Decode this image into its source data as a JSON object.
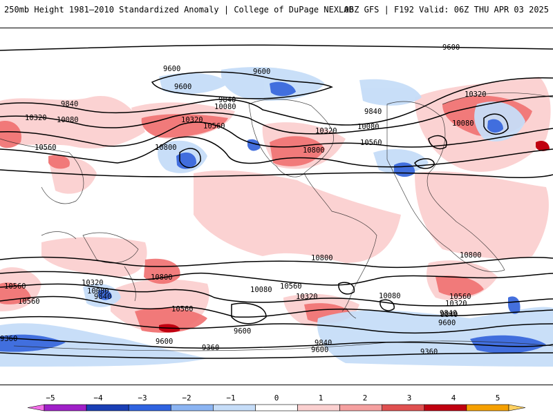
{
  "header": {
    "title_left": "250mb Height 1981–2010 Standardized Anomaly | College of DuPage NEXLAB",
    "title_right": "06Z GFS | F192 Valid: 06Z THU APR 03 2025"
  },
  "contour_labels": [
    "9600",
    "9600",
    "9600",
    "9600",
    "9840",
    "9840",
    "9840",
    "10080",
    "10080",
    "10080",
    "10320",
    "10320",
    "10320",
    "10560",
    "10560",
    "10800",
    "10800",
    "10320",
    "10080",
    "10560",
    "10320",
    "10080",
    "9840",
    "10560",
    "10800",
    "10560",
    "10560",
    "10320",
    "10080",
    "9840",
    "9600",
    "9600",
    "9360",
    "9360",
    "9360",
    "9600",
    "9840",
    "10320",
    "10560",
    "10800",
    "10080",
    "10560",
    "10800",
    "9600",
    "9840"
  ],
  "legend": {
    "ticks": [
      "−5",
      "−4",
      "−3",
      "−2",
      "−1",
      "0",
      "1",
      "2",
      "3",
      "4",
      "5"
    ],
    "colors": [
      "#f36ee8",
      "#a020c8",
      "#1a3fb5",
      "#2f63e0",
      "#8bb4f2",
      "#c6ddf8",
      "#ffffff",
      "#fbd0d0",
      "#f5a0a0",
      "#e05050",
      "#c00010",
      "#f5a000",
      "#ffd060"
    ]
  }
}
